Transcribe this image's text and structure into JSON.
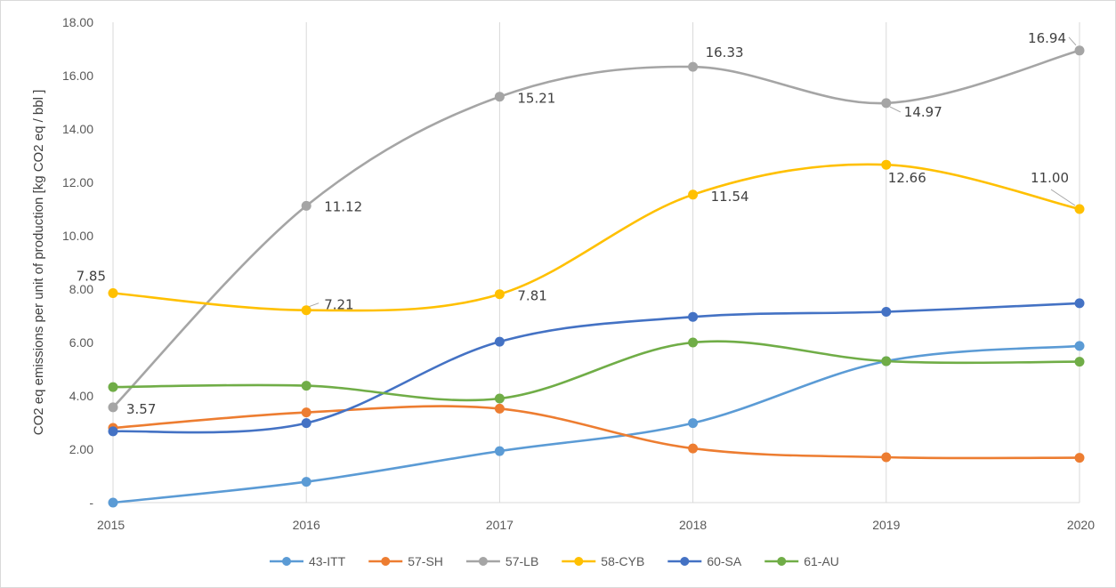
{
  "chart_data": {
    "type": "line",
    "title": "",
    "xlabel": "",
    "ylabel": "CO2 eq emissions per unit of production [kg CO2 eq / bbl ]",
    "x": [
      "2015",
      "2016",
      "2017",
      "2018",
      "2019",
      "2020"
    ],
    "ylim": [
      0,
      18
    ],
    "y_ticks": [
      "-",
      "2.00",
      "4.00",
      "6.00",
      "8.00",
      "10.00",
      "12.00",
      "14.00",
      "16.00",
      "18.00"
    ],
    "grid": "vertical gridlines only",
    "legend_position": "bottom",
    "smooth_lines": true,
    "series": [
      {
        "name": "43-ITT",
        "color": "#5B9BD5",
        "values": [
          0.0,
          0.78,
          1.93,
          2.98,
          5.3,
          5.87
        ]
      },
      {
        "name": "57-SH",
        "color": "#ED7D31",
        "values": [
          2.8,
          3.38,
          3.52,
          2.03,
          1.7,
          1.68
        ]
      },
      {
        "name": "57-LB",
        "color": "#A5A5A5",
        "values": [
          3.57,
          11.12,
          15.21,
          16.33,
          14.97,
          16.94
        ],
        "data_labels": [
          "3.57",
          "11.12",
          "15.21",
          "16.33",
          "14.97",
          "16.94"
        ]
      },
      {
        "name": "58-CYB",
        "color": "#FFC000",
        "values": [
          7.85,
          7.21,
          7.81,
          11.54,
          12.66,
          11.0
        ],
        "data_labels": [
          "7.85",
          "7.21",
          "7.81",
          "11.54",
          "12.66",
          "11.00"
        ]
      },
      {
        "name": "60-SA",
        "color": "#4472C4",
        "values": [
          2.67,
          2.98,
          6.03,
          6.96,
          7.15,
          7.47
        ]
      },
      {
        "name": "61-AU",
        "color": "#70AD47",
        "values": [
          4.33,
          4.38,
          3.9,
          6.0,
          5.3,
          5.28
        ]
      }
    ]
  }
}
